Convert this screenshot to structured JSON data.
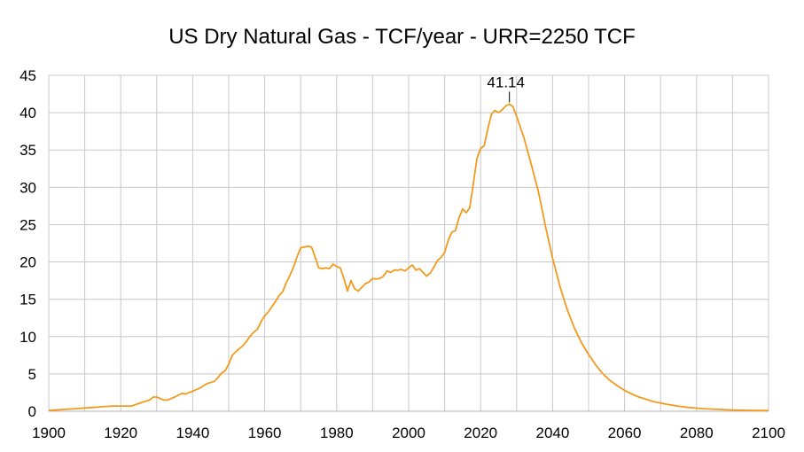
{
  "chart_data": {
    "type": "line",
    "title": "US Dry Natural Gas - TCF/year - URR=2250 TCF",
    "xlabel": "",
    "ylabel": "",
    "xlim": [
      1900,
      2100
    ],
    "ylim": [
      0,
      45
    ],
    "x_ticks": [
      1900,
      1920,
      1940,
      1960,
      1980,
      2000,
      2020,
      2040,
      2060,
      2080,
      2100
    ],
    "y_ticks": [
      0,
      5,
      10,
      15,
      20,
      25,
      30,
      35,
      40,
      45
    ],
    "grid": true,
    "legend": "none",
    "line_color": "#f39a1c",
    "annotation": {
      "text": "41.14",
      "x": 2028,
      "y": 41.14
    },
    "series": [
      {
        "points": [
          [
            1900,
            0.1
          ],
          [
            1903,
            0.2
          ],
          [
            1906,
            0.3
          ],
          [
            1909,
            0.4
          ],
          [
            1912,
            0.5
          ],
          [
            1915,
            0.6
          ],
          [
            1918,
            0.7
          ],
          [
            1921,
            0.7
          ],
          [
            1923,
            0.7
          ],
          [
            1926,
            1.2
          ],
          [
            1928,
            1.5
          ],
          [
            1929,
            1.9
          ],
          [
            1930,
            1.9
          ],
          [
            1931,
            1.7
          ],
          [
            1932,
            1.5
          ],
          [
            1933,
            1.5
          ],
          [
            1935,
            1.9
          ],
          [
            1937,
            2.4
          ],
          [
            1938,
            2.3
          ],
          [
            1940,
            2.7
          ],
          [
            1942,
            3.1
          ],
          [
            1944,
            3.7
          ],
          [
            1946,
            4.0
          ],
          [
            1947,
            4.5
          ],
          [
            1948,
            5.1
          ],
          [
            1949,
            5.4
          ],
          [
            1950,
            6.3
          ],
          [
            1951,
            7.5
          ],
          [
            1952,
            8.0
          ],
          [
            1953,
            8.4
          ],
          [
            1954,
            8.8
          ],
          [
            1955,
            9.4
          ],
          [
            1956,
            10.1
          ],
          [
            1957,
            10.6
          ],
          [
            1958,
            11.0
          ],
          [
            1959,
            12.0
          ],
          [
            1960,
            12.8
          ],
          [
            1961,
            13.3
          ],
          [
            1962,
            14.0
          ],
          [
            1963,
            14.7
          ],
          [
            1964,
            15.5
          ],
          [
            1965,
            16.0
          ],
          [
            1966,
            17.2
          ],
          [
            1967,
            18.2
          ],
          [
            1968,
            19.3
          ],
          [
            1969,
            20.7
          ],
          [
            1970,
            21.9
          ],
          [
            1971,
            22.0
          ],
          [
            1972,
            22.1
          ],
          [
            1973,
            22.0
          ],
          [
            1974,
            20.7
          ],
          [
            1975,
            19.2
          ],
          [
            1976,
            19.1
          ],
          [
            1977,
            19.2
          ],
          [
            1978,
            19.1
          ],
          [
            1979,
            19.7
          ],
          [
            1980,
            19.4
          ],
          [
            1981,
            19.2
          ],
          [
            1982,
            17.8
          ],
          [
            1983,
            16.1
          ],
          [
            1984,
            17.5
          ],
          [
            1985,
            16.4
          ],
          [
            1986,
            16.1
          ],
          [
            1987,
            16.6
          ],
          [
            1988,
            17.1
          ],
          [
            1989,
            17.3
          ],
          [
            1990,
            17.8
          ],
          [
            1991,
            17.7
          ],
          [
            1992,
            17.8
          ],
          [
            1993,
            18.1
          ],
          [
            1994,
            18.8
          ],
          [
            1995,
            18.6
          ],
          [
            1996,
            18.9
          ],
          [
            1997,
            18.9
          ],
          [
            1998,
            19.0
          ],
          [
            1999,
            18.8
          ],
          [
            2000,
            19.2
          ],
          [
            2001,
            19.6
          ],
          [
            2002,
            18.9
          ],
          [
            2003,
            19.1
          ],
          [
            2004,
            18.6
          ],
          [
            2005,
            18.1
          ],
          [
            2006,
            18.5
          ],
          [
            2007,
            19.3
          ],
          [
            2008,
            20.2
          ],
          [
            2009,
            20.6
          ],
          [
            2010,
            21.3
          ],
          [
            2011,
            22.9
          ],
          [
            2012,
            24.0
          ],
          [
            2013,
            24.2
          ],
          [
            2014,
            25.9
          ],
          [
            2015,
            27.1
          ],
          [
            2016,
            26.6
          ],
          [
            2017,
            27.3
          ],
          [
            2018,
            30.6
          ],
          [
            2019,
            33.9
          ],
          [
            2020,
            35.2
          ],
          [
            2021,
            35.6
          ],
          [
            2022,
            37.8
          ],
          [
            2023,
            39.8
          ],
          [
            2024,
            40.3
          ],
          [
            2025,
            40.0
          ],
          [
            2026,
            40.4
          ],
          [
            2027,
            40.9
          ],
          [
            2028,
            41.14
          ],
          [
            2029,
            40.8
          ],
          [
            2030,
            39.5
          ],
          [
            2032,
            36.7
          ],
          [
            2034,
            33.2
          ],
          [
            2036,
            29.5
          ],
          [
            2038,
            24.8
          ],
          [
            2040,
            20.5
          ],
          [
            2042,
            16.8
          ],
          [
            2044,
            13.7
          ],
          [
            2046,
            11.2
          ],
          [
            2048,
            9.2
          ],
          [
            2050,
            7.6
          ],
          [
            2052,
            6.2
          ],
          [
            2054,
            5.0
          ],
          [
            2056,
            4.1
          ],
          [
            2058,
            3.4
          ],
          [
            2060,
            2.8
          ],
          [
            2062,
            2.3
          ],
          [
            2064,
            1.9
          ],
          [
            2066,
            1.6
          ],
          [
            2068,
            1.3
          ],
          [
            2070,
            1.1
          ],
          [
            2072,
            0.9
          ],
          [
            2074,
            0.75
          ],
          [
            2076,
            0.6
          ],
          [
            2078,
            0.5
          ],
          [
            2080,
            0.42
          ],
          [
            2082,
            0.35
          ],
          [
            2084,
            0.3
          ],
          [
            2086,
            0.25
          ],
          [
            2088,
            0.2
          ],
          [
            2090,
            0.17
          ],
          [
            2092,
            0.14
          ],
          [
            2094,
            0.12
          ],
          [
            2096,
            0.1
          ],
          [
            2098,
            0.09
          ],
          [
            2100,
            0.08
          ]
        ]
      }
    ]
  }
}
